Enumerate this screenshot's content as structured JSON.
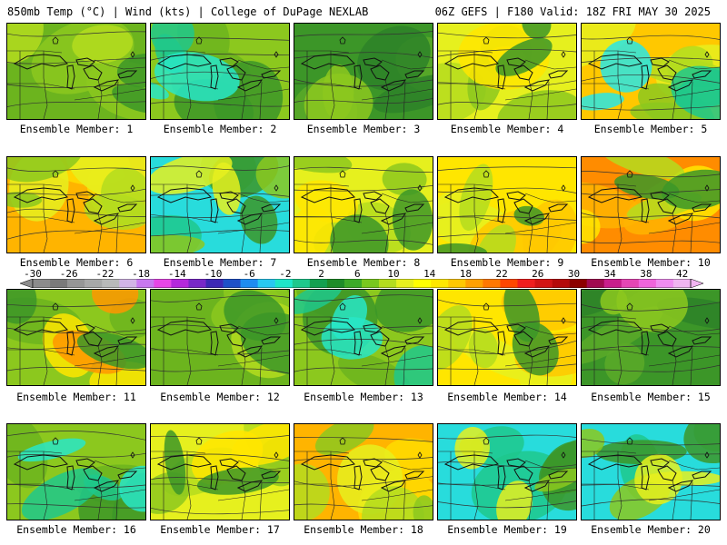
{
  "header": {
    "left": "850mb Temp (°C) | Wind (kts) | College of DuPage NEXLAB",
    "right": "06Z GEFS | F180 Valid: 18Z FRI MAY 30 2025"
  },
  "panels": [
    {
      "label": "Ensemble Member: 1",
      "scheme": "green"
    },
    {
      "label": "Ensemble Member: 2",
      "scheme": "green-cool"
    },
    {
      "label": "Ensemble Member: 3",
      "scheme": "dark-green"
    },
    {
      "label": "Ensemble Member: 4",
      "scheme": "yellow-green"
    },
    {
      "label": "Ensemble Member: 5",
      "scheme": "warm-cool"
    },
    {
      "label": "Ensemble Member: 6",
      "scheme": "warm"
    },
    {
      "label": "Ensemble Member: 7",
      "scheme": "cool"
    },
    {
      "label": "Ensemble Member: 8",
      "scheme": "yellow-green"
    },
    {
      "label": "Ensemble Member: 9",
      "scheme": "yellow"
    },
    {
      "label": "Ensemble Member: 10",
      "scheme": "hot"
    },
    {
      "label": "Ensemble Member: 11",
      "scheme": "green-warm"
    },
    {
      "label": "Ensemble Member: 12",
      "scheme": "green"
    },
    {
      "label": "Ensemble Member: 13",
      "scheme": "green-cool"
    },
    {
      "label": "Ensemble Member: 14",
      "scheme": "yellow"
    },
    {
      "label": "Ensemble Member: 15",
      "scheme": "dark-green"
    },
    {
      "label": "Ensemble Member: 16",
      "scheme": "green-cool"
    },
    {
      "label": "Ensemble Member: 17",
      "scheme": "yellow-green"
    },
    {
      "label": "Ensemble Member: 18",
      "scheme": "warm"
    },
    {
      "label": "Ensemble Member: 19",
      "scheme": "cool"
    },
    {
      "label": "Ensemble Member: 20",
      "scheme": "cool"
    }
  ],
  "colorbar": {
    "labels": [
      "-30",
      "-26",
      "-22",
      "-18",
      "-14",
      "-10",
      "-6",
      "-2",
      "2",
      "6",
      "10",
      "14",
      "18",
      "22",
      "26",
      "30",
      "34",
      "38",
      "42"
    ],
    "colors": [
      "#8c8c8c",
      "#7a7a7a",
      "#969696",
      "#a8a8a8",
      "#b9b9b9",
      "#d2b4e6",
      "#c878f0",
      "#e646e6",
      "#b428dc",
      "#7828c8",
      "#3c28b4",
      "#1e50c8",
      "#1e8cf0",
      "#28c8f0",
      "#1ee6c8",
      "#1ec88c",
      "#14a050",
      "#1e8c28",
      "#3caa28",
      "#78c81e",
      "#b4dc1e",
      "#e6f01e",
      "#ffff00",
      "#ffe600",
      "#ffc800",
      "#ffa000",
      "#ff7800",
      "#ff4600",
      "#f01e1e",
      "#d21414",
      "#b40a0a",
      "#8c0000",
      "#a00a50",
      "#c81e8c",
      "#e646b4",
      "#f064dc",
      "#f08cf0",
      "#f0b4f0"
    ]
  },
  "color_schemes": {
    "green": [
      "#6cb41e",
      "#8cc81e",
      "#b4dc1e",
      "#3c9628"
    ],
    "green-cool": [
      "#8cc81e",
      "#6cb41e",
      "#3c9628",
      "#1ec88c",
      "#28e6c8"
    ],
    "dark-green": [
      "#3c9628",
      "#5aaa28",
      "#2d8228",
      "#8cc81e"
    ],
    "yellow-green": [
      "#e6f01e",
      "#b4dc1e",
      "#8cc81e",
      "#ffe600",
      "#3c9628"
    ],
    "warm-cool": [
      "#ffc800",
      "#e6f01e",
      "#b4dc1e",
      "#8cc81e",
      "#1ec88c",
      "#28e6e6"
    ],
    "warm": [
      "#ffb400",
      "#ffdc00",
      "#e6f01e",
      "#b4dc1e",
      "#8cc81e"
    ],
    "cool": [
      "#28dcdc",
      "#1ec88c",
      "#3c9628",
      "#8cc81e",
      "#e6f01e"
    ],
    "yellow": [
      "#ffe600",
      "#e6f01e",
      "#ffc800",
      "#b4dc1e",
      "#3c9628"
    ],
    "hot": [
      "#ff8c00",
      "#ffb400",
      "#ffe600",
      "#b4dc1e",
      "#3c9628"
    ],
    "green-warm": [
      "#8cc81e",
      "#6cb41e",
      "#ffe600",
      "#ff9600",
      "#3c9628"
    ]
  }
}
